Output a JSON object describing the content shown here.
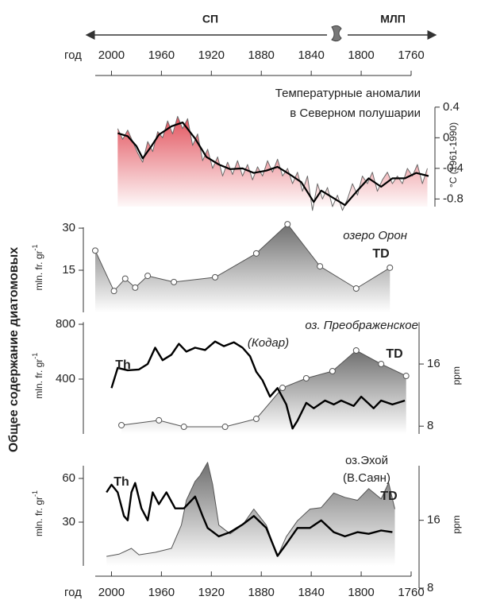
{
  "xaxis": {
    "label": "год",
    "xlim": [
      2013,
      1760
    ],
    "xticks": [
      2000,
      1960,
      1920,
      1880,
      1840,
      1800,
      1760
    ]
  },
  "top_arrows": {
    "left": "СП",
    "right": "МЛП"
  },
  "shared_ylabel": "Общее содержание диатомовых",
  "chart_data": [
    {
      "type": "area",
      "title": [
        "Температурные аномалии",
        "в Северном полушарии"
      ],
      "ylabel": {
        "text": "°C (1961-1990)"
      },
      "ylim": [
        -0.9,
        0.45
      ],
      "yticks": [
        0.4,
        0,
        -0.4,
        -0.8
      ],
      "series": [
        {
          "color": "#6a6a6a",
          "fill": "#e2545e",
          "width": 1,
          "x": [
            1995,
            1991,
            1987,
            1983,
            1979,
            1975,
            1971,
            1967,
            1963,
            1959,
            1955,
            1951,
            1947,
            1943,
            1939,
            1935,
            1931,
            1927,
            1923,
            1919,
            1915,
            1911,
            1907,
            1903,
            1899,
            1895,
            1891,
            1887,
            1883,
            1879,
            1875,
            1871,
            1867,
            1863,
            1859,
            1855,
            1851,
            1847,
            1843,
            1839,
            1835,
            1831,
            1827,
            1823,
            1819,
            1815,
            1811,
            1807,
            1803,
            1799,
            1795,
            1791,
            1787,
            1783,
            1779,
            1775,
            1771,
            1767,
            1763,
            1759,
            1755,
            1751,
            1747
          ],
          "values": [
            0.12,
            -0.02,
            0.1,
            -0.05,
            -0.2,
            -0.32,
            -0.05,
            -0.18,
            0.08,
            0.0,
            0.22,
            0.05,
            0.28,
            0.12,
            0.25,
            -0.1,
            0.05,
            -0.3,
            -0.15,
            -0.4,
            -0.25,
            -0.5,
            -0.32,
            -0.48,
            -0.3,
            -0.5,
            -0.35,
            -0.55,
            -0.38,
            -0.5,
            -0.3,
            -0.45,
            -0.28,
            -0.5,
            -0.4,
            -0.6,
            -0.45,
            -0.7,
            -0.5,
            -0.95,
            -0.6,
            -0.8,
            -0.65,
            -0.9,
            -0.75,
            -0.95,
            -0.8,
            -0.6,
            -0.75,
            -0.5,
            -0.6,
            -0.45,
            -0.7,
            -0.55,
            -0.45,
            -0.6,
            -0.5,
            -0.6,
            -0.4,
            -0.5,
            -0.35,
            -0.6,
            -0.4
          ]
        },
        {
          "color": "#000000",
          "width": 2.2,
          "x": [
            1995,
            1987,
            1980,
            1975,
            1968,
            1962,
            1952,
            1943,
            1933,
            1924,
            1914,
            1905,
            1895,
            1886,
            1876,
            1867,
            1857,
            1848,
            1838,
            1832,
            1822,
            1813,
            1803,
            1794,
            1784,
            1775,
            1765,
            1756,
            1746
          ],
          "values": [
            0.06,
            0.02,
            -0.11,
            -0.27,
            -0.11,
            0.04,
            0.15,
            0.2,
            -0.01,
            -0.25,
            -0.35,
            -0.41,
            -0.4,
            -0.46,
            -0.43,
            -0.38,
            -0.48,
            -0.58,
            -0.84,
            -0.69,
            -0.79,
            -0.88,
            -0.69,
            -0.53,
            -0.64,
            -0.53,
            -0.53,
            -0.46,
            -0.5
          ]
        }
      ]
    },
    {
      "type": "area",
      "title": "озеро Орон",
      "title_style": "italic",
      "ylabel": {
        "text": "mln. fr. gr",
        "sup": "-1"
      },
      "ylim": [
        0,
        32
      ],
      "yticks": [
        30,
        15
      ],
      "series": [
        {
          "name": "TD",
          "color": "#555555",
          "fill": "#6f6f6f",
          "width": 1,
          "markers": true,
          "x": [
            2013,
            1998,
            1989,
            1981,
            1971,
            1950,
            1917,
            1884,
            1859,
            1833,
            1804,
            1777
          ],
          "values": [
            22,
            7.6,
            12,
            8.8,
            13,
            10.8,
            12.5,
            21,
            31.4,
            16.4,
            8.5,
            15.9
          ]
        }
      ]
    },
    {
      "type": "area",
      "title": [
        "оз. Преображенское",
        "(Кодар)"
      ],
      "title_style": "italic",
      "ylabel": {
        "text": "mln. fr. gr",
        "sup": "-1"
      },
      "y2label": "ppm",
      "ylim": [
        0,
        850
      ],
      "yticks": [
        800,
        400
      ],
      "y2lim": [
        7,
        22
      ],
      "y2ticks": [
        16,
        8
      ],
      "series": [
        {
          "name": "TD",
          "color": "#555555",
          "fill": "#6f6f6f",
          "width": 1,
          "markers": true,
          "x": [
            1992,
            1962,
            1942,
            1909,
            1884,
            1863,
            1844,
            1823,
            1804,
            1784,
            1764
          ],
          "values": [
            64,
            99,
            52,
            52,
            110,
            336,
            406,
            458,
            609,
            510,
            423
          ]
        },
        {
          "name": "Th",
          "color": "#000000",
          "width": 2.4,
          "axis": "y2",
          "x": [
            2000,
            1995,
            1987,
            1978,
            1971,
            1965,
            1959,
            1952,
            1946,
            1940,
            1933,
            1925,
            1917,
            1910,
            1902,
            1895,
            1889,
            1884,
            1879,
            1873,
            1867,
            1860,
            1855,
            1851,
            1844,
            1838,
            1829,
            1822,
            1816,
            1806,
            1800,
            1790,
            1784,
            1775,
            1765
          ],
          "values": [
            12.9,
            15.5,
            15.2,
            15.3,
            16.0,
            18.1,
            16.5,
            17.2,
            18.6,
            17.6,
            18.1,
            17.8,
            18.9,
            18.3,
            18.8,
            18.1,
            17.0,
            15.0,
            13.9,
            11.8,
            12.9,
            10.8,
            7.7,
            8.7,
            11.0,
            10.3,
            11.3,
            10.8,
            11.3,
            10.6,
            11.8,
            10.3,
            11.3,
            10.8,
            11.3
          ]
        }
      ]
    },
    {
      "type": "area",
      "title": [
        "оз.Эхой",
        "(В.Саян)"
      ],
      "ylabel": {
        "text": "mln. fr. gr",
        "sup": "-1"
      },
      "y2label": "ppm",
      "ylim": [
        0,
        72
      ],
      "yticks": [
        60,
        30
      ],
      "y2lim": [
        8,
        23
      ],
      "y2ticks": [
        16,
        8
      ],
      "series": [
        {
          "name": "TD",
          "color": "#555555",
          "fill": "#6f6f6f",
          "width": 1,
          "x": [
            2004,
            1994,
            1984,
            1978,
            1965,
            1952,
            1944,
            1940,
            1933,
            1929,
            1923,
            1919,
            1914,
            1905,
            1895,
            1886,
            1876,
            1867,
            1860,
            1851,
            1841,
            1832,
            1822,
            1813,
            1803,
            1794,
            1784,
            1778,
            1773
          ],
          "values": [
            6.5,
            8,
            12,
            7.6,
            9.3,
            12,
            28,
            45,
            58,
            62,
            71,
            56,
            28,
            22,
            28,
            39,
            28,
            6.5,
            20,
            31,
            39,
            40,
            50,
            47,
            45,
            53,
            46,
            57,
            39
          ]
        },
        {
          "name": "Th",
          "color": "#000000",
          "width": 2.4,
          "axis": "y2",
          "x": [
            2004,
            2000,
            1995,
            1990,
            1987,
            1984,
            1981,
            1976,
            1971,
            1967,
            1962,
            1956,
            1949,
            1942,
            1933,
            1927,
            1923,
            1914,
            1905,
            1895,
            1886,
            1876,
            1867,
            1860,
            1851,
            1841,
            1832,
            1822,
            1813,
            1803,
            1794,
            1784,
            1775
          ],
          "values": [
            19.3,
            20.2,
            19.3,
            16.5,
            16.0,
            19.3,
            20.4,
            17.4,
            16.0,
            19.3,
            17.9,
            19.3,
            17.4,
            17.4,
            18.8,
            16.5,
            15.1,
            14.1,
            14.6,
            15.5,
            16.5,
            15.1,
            11.8,
            13.2,
            15.1,
            15.1,
            16.0,
            14.6,
            14.1,
            14.6,
            14.4,
            14.8,
            14.6
          ]
        }
      ]
    }
  ]
}
